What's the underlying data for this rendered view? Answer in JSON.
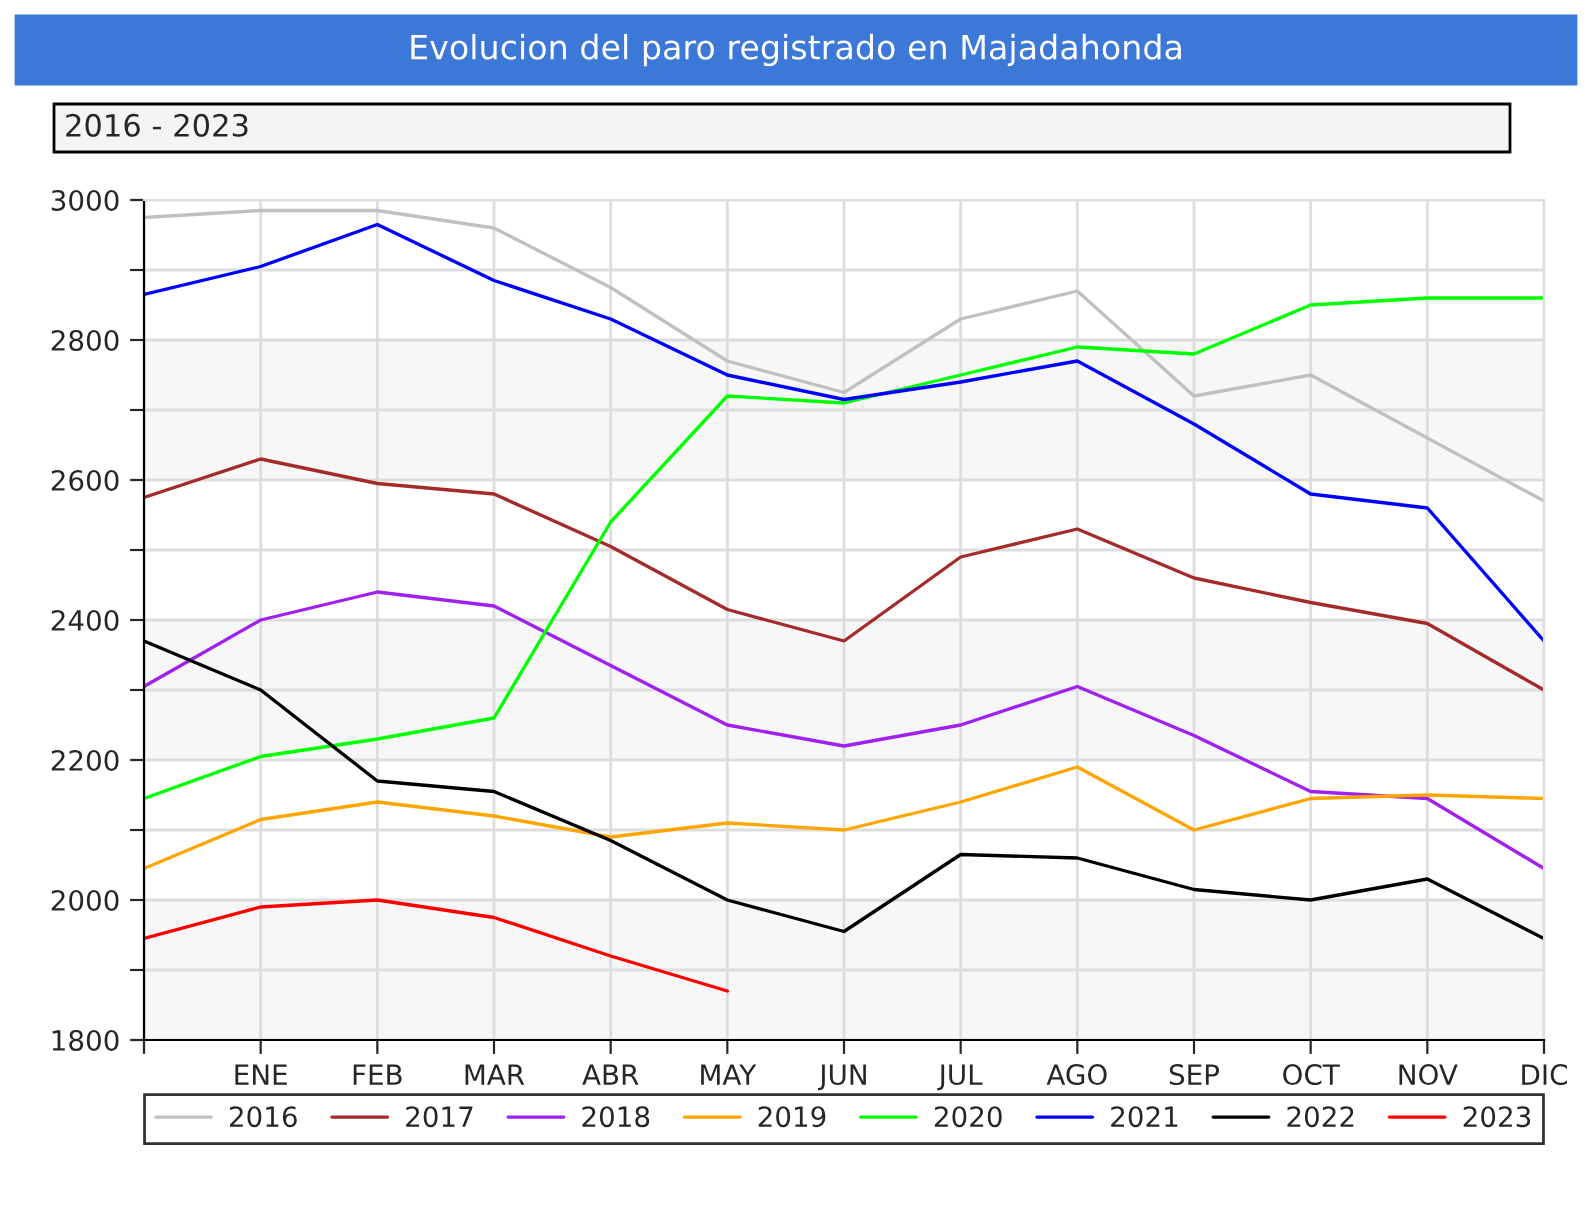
{
  "chart_data": {
    "type": "line",
    "title": "Evolucion del paro registrado en Majadahonda",
    "subtitle": "2016 - 2023",
    "categories": [
      null,
      "ENE",
      "FEB",
      "MAR",
      "ABR",
      "MAY",
      "JUN",
      "JUL",
      "AGO",
      "SEP",
      "OCT",
      "NOV",
      "DIC"
    ],
    "series": [
      {
        "name": "2016",
        "color": "#c0c0c0",
        "values": [
          2975,
          2985,
          2985,
          2960,
          2875,
          2770,
          2725,
          2830,
          2870,
          2720,
          2750,
          2660,
          2570
        ]
      },
      {
        "name": "2017",
        "color": "#a52a2a",
        "values": [
          2575,
          2630,
          2595,
          2580,
          2505,
          2415,
          2370,
          2490,
          2530,
          2460,
          2425,
          2395,
          2300
        ]
      },
      {
        "name": "2018",
        "color": "#a020f0",
        "values": [
          2305,
          2400,
          2440,
          2420,
          2335,
          2250,
          2220,
          2250,
          2305,
          2235,
          2155,
          2145,
          2045
        ]
      },
      {
        "name": "2019",
        "color": "#ffa500",
        "values": [
          2045,
          2115,
          2140,
          2120,
          2090,
          2110,
          2100,
          2140,
          2190,
          2100,
          2145,
          2150,
          2145
        ]
      },
      {
        "name": "2020",
        "color": "#00ff00",
        "values": [
          2145,
          2205,
          2230,
          2260,
          2540,
          2720,
          2710,
          2750,
          2790,
          2780,
          2850,
          2860,
          2860
        ]
      },
      {
        "name": "2021",
        "color": "#0000ff",
        "values": [
          2865,
          2905,
          2965,
          2885,
          2830,
          2750,
          2715,
          2740,
          2770,
          2680,
          2580,
          2560,
          2370
        ]
      },
      {
        "name": "2022",
        "color": "#000000",
        "values": [
          2370,
          2300,
          2170,
          2155,
          2085,
          2000,
          1955,
          2065,
          2060,
          2015,
          2000,
          2030,
          1945
        ]
      },
      {
        "name": "2023",
        "color": "#ff0000",
        "values": [
          1945,
          1990,
          2000,
          1975,
          1920,
          1870,
          null,
          null,
          null,
          null,
          null,
          null,
          null
        ]
      }
    ],
    "ylim": [
      1800,
      3000
    ],
    "yticks": [
      1800,
      {
        "value": 1900,
        "label": null
      },
      2000,
      {
        "value": 2100,
        "label": null
      },
      2200,
      {
        "value": 2300,
        "label": null
      },
      2400,
      {
        "value": 2500,
        "label": null
      },
      2600,
      {
        "value": 2700,
        "label": null
      },
      2800,
      {
        "value": 2900,
        "label": null
      },
      3000
    ],
    "grid": true,
    "legend": "bottom",
    "marker": "none",
    "line_style": "solid"
  }
}
